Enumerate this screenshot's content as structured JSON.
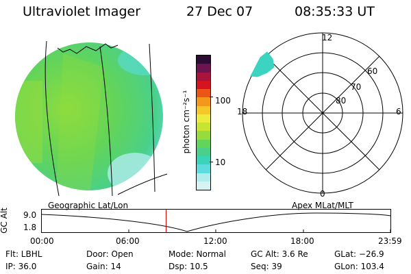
{
  "header": {
    "instrument": "Ultraviolet Imager",
    "date": "27 Dec 07",
    "time": "08:35:33 UT"
  },
  "colorbar": {
    "label": "photon cm⁻²s⁻¹",
    "ticks": [
      "100",
      "10"
    ],
    "colors": [
      "#d6f2f2",
      "#b0ecec",
      "#5cdcdc",
      "#3ad4b8",
      "#4ad08a",
      "#62d45a",
      "#96dc3c",
      "#c8e432",
      "#ecec3c",
      "#f4c828",
      "#f4981c",
      "#ec5418",
      "#d41420",
      "#a8143c",
      "#6c1450",
      "#2c0c34"
    ]
  },
  "geo_panel": {
    "label": "Geographic Lat/Lon"
  },
  "polar_panel": {
    "label": "Apex  MLat/MLT",
    "mlt_labels": [
      "12",
      "18",
      "6",
      "0"
    ],
    "lat_labels": [
      "60",
      "70",
      "80"
    ]
  },
  "altitude_plot": {
    "ylabel": "GC Alt",
    "yticks": [
      "9.0",
      "1.8"
    ],
    "xticks": [
      "00:00",
      "06:00",
      "12:00",
      "18:00",
      "23:59"
    ],
    "current_time_hours": 8.59
  },
  "footer": {
    "filter": "Flt: LBHL",
    "ip": "IP: 36.0",
    "door": "Door: Open",
    "gain": "Gain: 14",
    "mode": "Mode: Normal",
    "dsp": "Dsp:    10.5",
    "gc_alt": "GC Alt: 3.6 Re",
    "seq": "Seq: 39",
    "glat": "GLat:  −26.9",
    "glon": "GLon: 103.4"
  }
}
